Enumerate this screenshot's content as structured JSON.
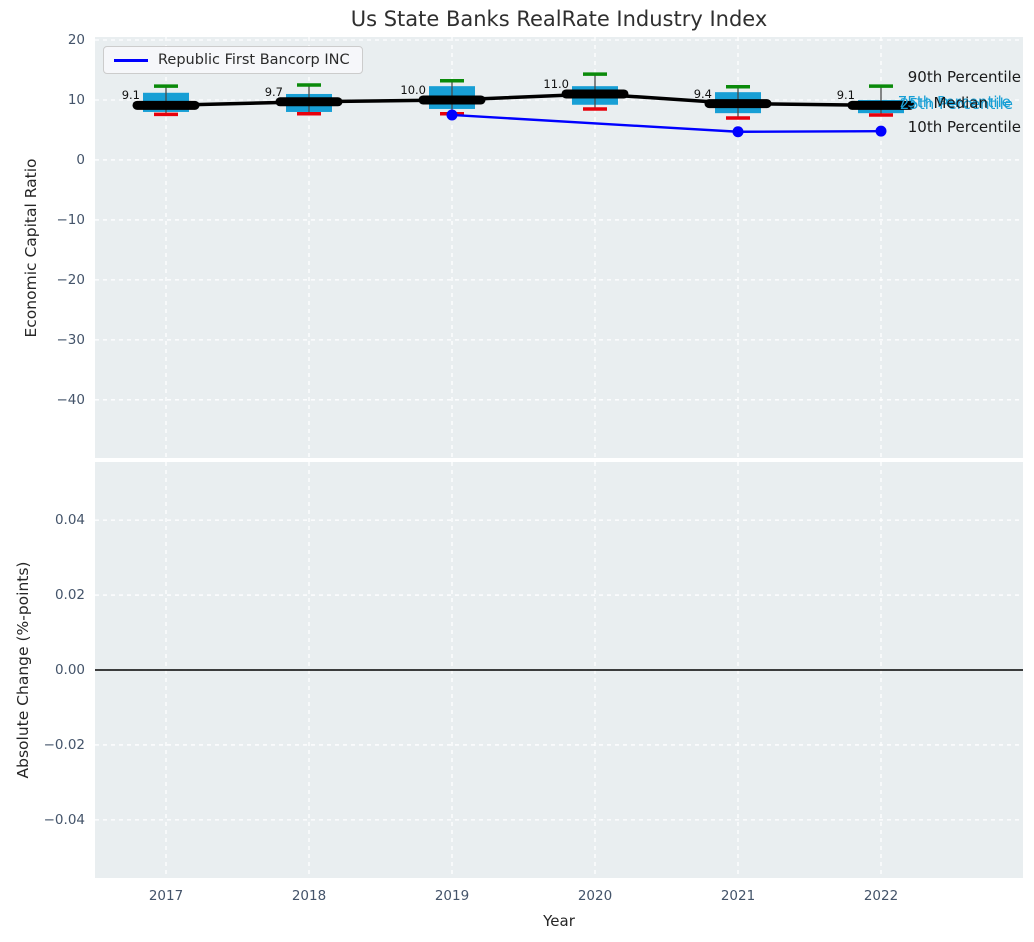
{
  "title": "Us State Banks RealRate Industry Index",
  "legend": {
    "label": "Republic First Bancorp INC",
    "line_color": "#0000ff"
  },
  "colors": {
    "plot_bg": "#e9eef0",
    "grid": "#ffffff",
    "box_fill": "#189fd5",
    "median": "#000000",
    "connector": "#000000",
    "whisker": "#4a4a4a",
    "p90_cap": "#0a8a0a",
    "p10_cap": "#e8000b",
    "company_line": "#0000ff",
    "zero_line": "#000000",
    "tick": "#44546a",
    "text": "#262626",
    "annotation_teal": "#189fd5",
    "annotation_black": "#1a1a1a"
  },
  "chart_data": {
    "type": "box",
    "title": "Us State Banks RealRate Industry Index",
    "xlabel": "Year",
    "categories": [
      "2017",
      "2018",
      "2019",
      "2020",
      "2021",
      "2022"
    ],
    "grid": true,
    "legend_position": "upper left",
    "top_panel": {
      "ylabel": "Economic Capital Ratio",
      "ylim": [
        -49.7,
        20.5
      ],
      "ytick_values": [
        20,
        10,
        0,
        -10,
        -20,
        -30,
        -40
      ],
      "ytick_labels": [
        "20",
        "10",
        "0",
        "−10",
        "−20",
        "−30",
        "−40"
      ],
      "boxes": [
        {
          "category": "2017",
          "p10": 7.6,
          "q1": 8.0,
          "median": 9.1,
          "q3": 11.2,
          "p90": 12.3,
          "median_label": "9.1"
        },
        {
          "category": "2018",
          "p10": 7.7,
          "q1": 8.0,
          "median": 9.7,
          "q3": 11.0,
          "p90": 12.5,
          "median_label": "9.7"
        },
        {
          "category": "2019",
          "p10": 7.7,
          "q1": 8.5,
          "median": 10.0,
          "q3": 12.3,
          "p90": 13.2,
          "median_label": "10.0"
        },
        {
          "category": "2020",
          "p10": 8.5,
          "q1": 9.2,
          "median": 11.0,
          "q3": 12.3,
          "p90": 14.3,
          "median_label": "11.0"
        },
        {
          "category": "2021",
          "p10": 7.0,
          "q1": 7.8,
          "median": 9.4,
          "q3": 11.3,
          "p90": 12.2,
          "median_label": "9.4"
        },
        {
          "category": "2022",
          "p10": 7.5,
          "q1": 7.8,
          "median": 9.1,
          "q3": 10.0,
          "p90": 12.3,
          "median_label": "9.1"
        }
      ],
      "company_line": {
        "name": "Republic First Bancorp INC",
        "points": [
          {
            "x": "2019",
            "y": 7.5
          },
          {
            "x": "2021",
            "y": 4.7
          },
          {
            "x": "2022",
            "y": 4.8
          }
        ]
      },
      "annotations": [
        {
          "text": "90th Percentile",
          "color": "#1a1a1a",
          "value": 13.7,
          "right_offset": 2
        },
        {
          "text": "75th Percentile",
          "color": "#189fd5",
          "value": 9.5,
          "right_offset": 12
        },
        {
          "text": "25th Percentile",
          "color": "#189fd5",
          "value": 9.1,
          "right_offset": 10
        },
        {
          "text": "Median",
          "color": "#1a1a1a",
          "value": 9.35,
          "right_offset": 35
        },
        {
          "text": "10th Percentile",
          "color": "#1a1a1a",
          "value": 5.4,
          "right_offset": 2
        }
      ]
    },
    "bottom_panel": {
      "ylabel": "Absolute Change (%-points)",
      "ylim": [
        -0.0555,
        0.0555
      ],
      "ytick_values": [
        0.04,
        0.02,
        0,
        -0.02,
        -0.04
      ],
      "ytick_labels": [
        "0.04",
        "0.02",
        "0.00",
        "−0.02",
        "−0.04"
      ],
      "zero_line_value": 0.0,
      "series": []
    }
  }
}
